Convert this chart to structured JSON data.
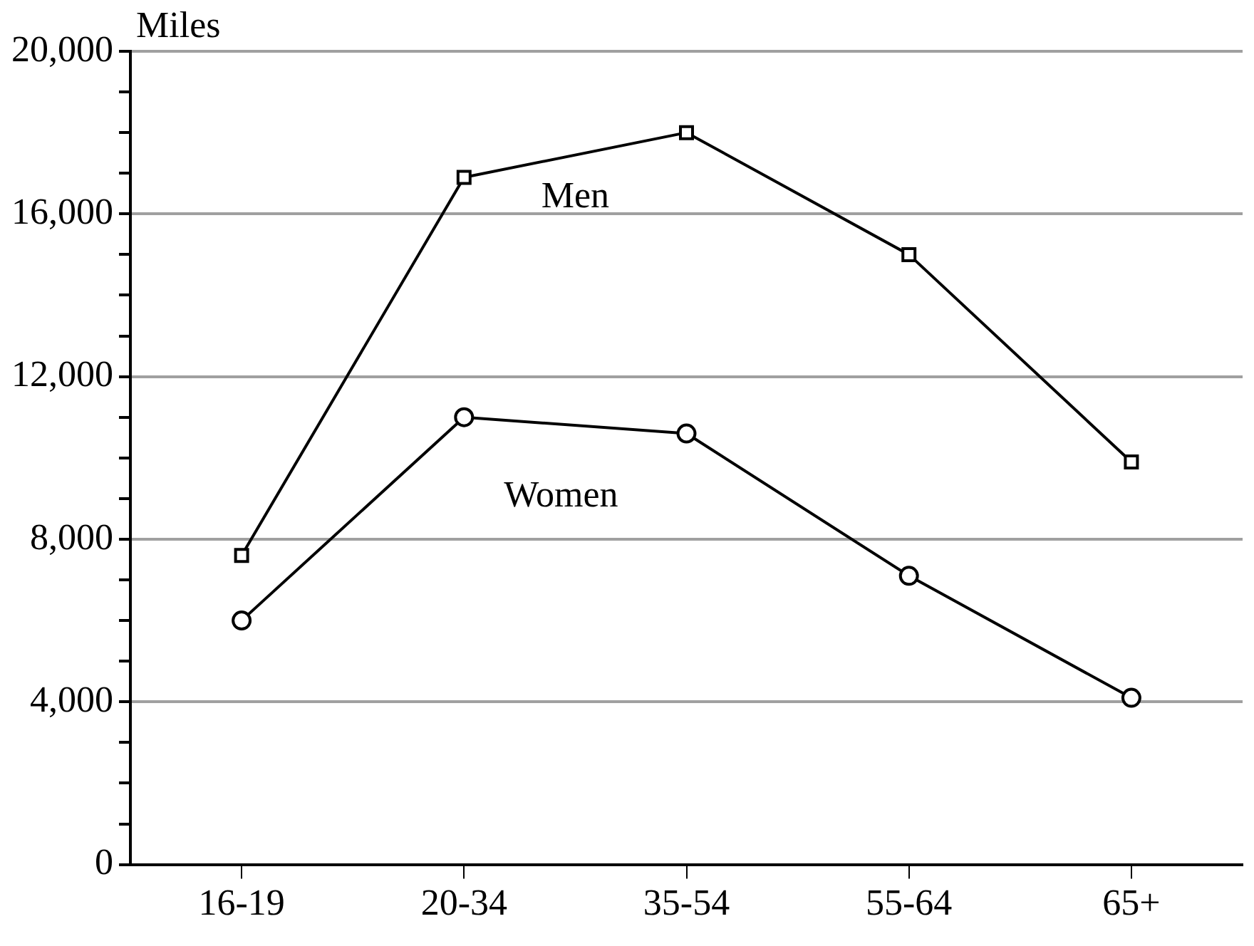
{
  "chart_data": {
    "type": "line",
    "ylabel": "Miles",
    "categories": [
      "16-19",
      "20-34",
      "35-54",
      "55-64",
      "65+"
    ],
    "series": [
      {
        "name": "Men",
        "color": "#000000",
        "marker": "square",
        "values": [
          7600,
          16900,
          18000,
          15000,
          9900
        ]
      },
      {
        "name": "Women",
        "color": "#000000",
        "marker": "circle",
        "values": [
          6000,
          11000,
          10600,
          7100,
          4100
        ]
      }
    ],
    "ylim": [
      0,
      20000
    ],
    "yticks": [
      0,
      {
        "value": 1000,
        "label": null
      },
      {
        "value": 2000,
        "label": null
      },
      {
        "value": 3000,
        "label": null
      },
      "4,000",
      {
        "value": 5000,
        "label": null
      },
      {
        "value": 6000,
        "label": null
      },
      {
        "value": 7000,
        "label": null
      },
      {
        "value": 8000,
        "label": "8,000"
      },
      {
        "value": 9000,
        "label": null
      },
      {
        "value": 10000,
        "label": null
      },
      {
        "value": 11000,
        "label": null
      },
      {
        "value": 12000,
        "label": "12,000"
      },
      {
        "value": 13000,
        "label": null
      },
      {
        "value": 14000,
        "label": null
      },
      {
        "value": 15000,
        "label": null
      },
      {
        "value": 16000,
        "label": "16,000"
      },
      {
        "value": 17000,
        "label": null
      },
      {
        "value": 18000,
        "label": null
      },
      {
        "value": 19000,
        "label": null
      },
      {
        "value": 20000,
        "label": "20,000"
      }
    ],
    "grid": "y",
    "legend": false,
    "line_style": "solid"
  }
}
